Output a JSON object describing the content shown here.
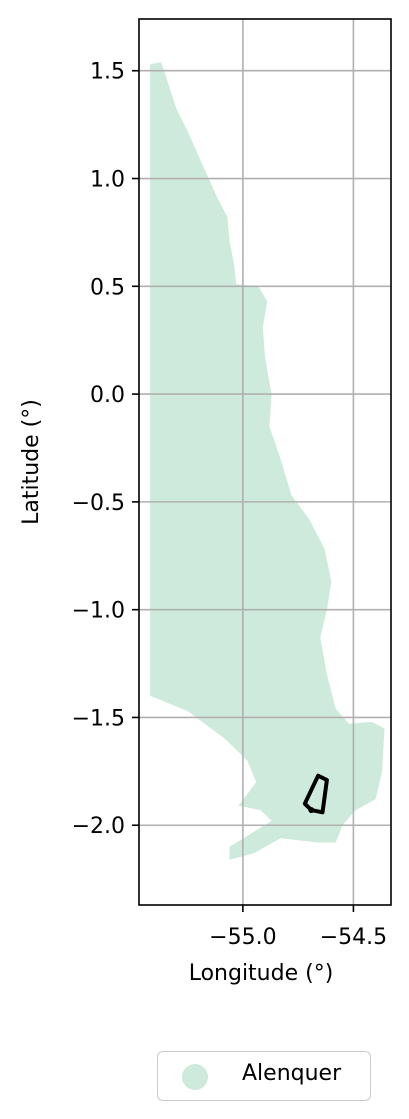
{
  "chart_data": {
    "type": "map",
    "xlabel": "Longitude (°)",
    "ylabel": "Latitude (°)",
    "xlim": [
      -55.47,
      -54.33
    ],
    "ylim": [
      -2.37,
      1.74
    ],
    "x_ticks": [
      {
        "value": -55.0,
        "label": "−55.0"
      },
      {
        "value": -54.5,
        "label": "−54.5"
      }
    ],
    "y_ticks": [
      {
        "value": 1.5,
        "label": "1.5"
      },
      {
        "value": 1.0,
        "label": "1.0"
      },
      {
        "value": 0.5,
        "label": "0.5"
      },
      {
        "value": 0.0,
        "label": "0.0"
      },
      {
        "value": -0.5,
        "label": "−0.5"
      },
      {
        "value": -1.0,
        "label": "−1.0"
      },
      {
        "value": -1.5,
        "label": "−1.5"
      },
      {
        "value": -2.0,
        "label": "−2.0"
      }
    ],
    "grid": true,
    "legend": {
      "placement": "bottom-center",
      "entries": [
        {
          "label": "Alenquer",
          "color": "#cdeadc"
        }
      ]
    },
    "region": {
      "name": "Alenquer",
      "color": "#cdeadc",
      "outline": [
        [
          -55.42,
          1.53
        ],
        [
          -55.37,
          1.54
        ],
        [
          -55.35,
          1.48
        ],
        [
          -55.3,
          1.32
        ],
        [
          -55.25,
          1.22
        ],
        [
          -55.19,
          1.08
        ],
        [
          -55.12,
          0.92
        ],
        [
          -55.07,
          0.82
        ],
        [
          -55.06,
          0.71
        ],
        [
          -55.04,
          0.6
        ],
        [
          -55.03,
          0.51
        ],
        [
          -54.93,
          0.5
        ],
        [
          -54.89,
          0.43
        ],
        [
          -54.91,
          0.31
        ],
        [
          -54.9,
          0.17
        ],
        [
          -54.87,
          0.0
        ],
        [
          -54.88,
          -0.15
        ],
        [
          -54.83,
          -0.3
        ],
        [
          -54.78,
          -0.47
        ],
        [
          -54.7,
          -0.58
        ],
        [
          -54.63,
          -0.72
        ],
        [
          -54.6,
          -0.87
        ],
        [
          -54.62,
          -1.0
        ],
        [
          -54.65,
          -1.13
        ],
        [
          -54.62,
          -1.3
        ],
        [
          -54.58,
          -1.46
        ],
        [
          -54.52,
          -1.53
        ],
        [
          -54.42,
          -1.52
        ],
        [
          -54.36,
          -1.55
        ],
        [
          -54.37,
          -1.75
        ],
        [
          -54.4,
          -1.88
        ],
        [
          -54.49,
          -1.93
        ],
        [
          -54.55,
          -2.0
        ],
        [
          -54.58,
          -2.08
        ],
        [
          -54.66,
          -2.08
        ],
        [
          -54.83,
          -2.06
        ],
        [
          -54.95,
          -2.13
        ],
        [
          -55.06,
          -2.16
        ],
        [
          -55.06,
          -2.1
        ],
        [
          -54.95,
          -2.03
        ],
        [
          -54.87,
          -1.98
        ],
        [
          -54.92,
          -1.93
        ],
        [
          -55.02,
          -1.91
        ],
        [
          -54.94,
          -1.8
        ],
        [
          -54.98,
          -1.7
        ],
        [
          -55.08,
          -1.6
        ],
        [
          -55.25,
          -1.47
        ],
        [
          -55.42,
          -1.4
        ]
      ]
    },
    "overlay_polygon": {
      "color": "#000000",
      "outline": [
        [
          -54.66,
          -1.77
        ],
        [
          -54.62,
          -1.79
        ],
        [
          -54.64,
          -1.94
        ],
        [
          -54.69,
          -1.93
        ],
        [
          -54.72,
          -1.9
        ]
      ]
    }
  }
}
